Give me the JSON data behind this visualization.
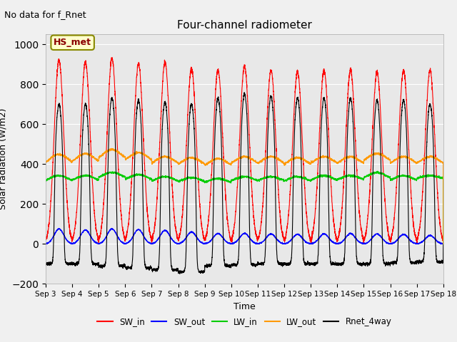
{
  "title": "Four-channel radiometer",
  "top_left_text": "No data for f_Rnet",
  "station_label": "HS_met",
  "ylabel": "Solar radiation (W/m2)",
  "xlabel": "Time",
  "ylim": [
    -200,
    1050
  ],
  "n_days": 15,
  "x_tick_labels": [
    "Sep 3",
    "Sep 4",
    "Sep 5",
    "Sep 6",
    "Sep 7",
    "Sep 8",
    "Sep 9",
    "Sep 10",
    "Sep 11",
    "Sep 12",
    "Sep 13",
    "Sep 14",
    "Sep 15",
    "Sep 16",
    "Sep 17",
    "Sep 18"
  ],
  "axes_bg": "#e8e8e8",
  "fig_bg": "#f0f0f0",
  "line_colors": {
    "SW_in": "#ff0000",
    "SW_out": "#0000ff",
    "LW_in": "#00cc00",
    "LW_out": "#ff9900",
    "Rnet_4way": "#000000"
  },
  "SW_in_peak": [
    920,
    910,
    930,
    900,
    910,
    880,
    870,
    890,
    870,
    860,
    870,
    870,
    860,
    870,
    870
  ],
  "SW_out_peak": [
    75,
    70,
    75,
    72,
    68,
    60,
    52,
    53,
    50,
    48,
    50,
    52,
    50,
    48,
    42
  ],
  "LW_in_base": [
    305,
    308,
    322,
    312,
    303,
    302,
    298,
    307,
    307,
    303,
    307,
    312,
    318,
    307,
    322
  ],
  "LW_in_peak": [
    342,
    342,
    358,
    347,
    337,
    332,
    327,
    337,
    337,
    337,
    342,
    342,
    357,
    342,
    342
  ],
  "LW_out_base": [
    388,
    392,
    412,
    402,
    387,
    382,
    377,
    387,
    387,
    382,
    387,
    387,
    402,
    387,
    387
  ],
  "LW_out_peak": [
    448,
    452,
    472,
    457,
    437,
    432,
    427,
    437,
    437,
    432,
    437,
    437,
    452,
    437,
    437
  ],
  "Rnet_peak": [
    700,
    700,
    730,
    720,
    710,
    700,
    730,
    750,
    740,
    730,
    730,
    730,
    720,
    720,
    700
  ],
  "Rnet_night": [
    -100,
    -100,
    -110,
    -120,
    -130,
    -140,
    -110,
    -105,
    -100,
    -100,
    -100,
    -100,
    -100,
    -95,
    -90
  ]
}
